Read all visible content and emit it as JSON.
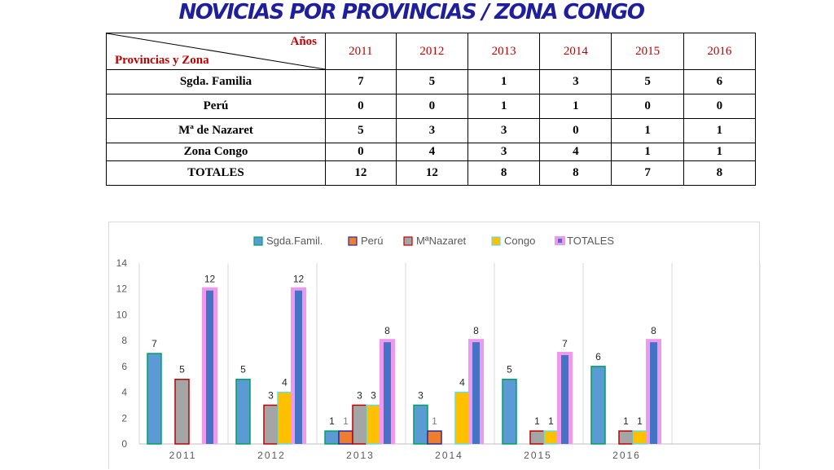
{
  "title": "NOVICIAS POR PROVINCIAS / ZONA CONGO",
  "table": {
    "corner_top": "Años",
    "corner_bottom": "Provincias y Zona",
    "years": [
      "2011",
      "2012",
      "2013",
      "2014",
      "2015",
      "2016"
    ],
    "rows": [
      {
        "label": "Sgda. Familia",
        "values": [
          "7",
          "5",
          "1",
          "3",
          "5",
          "6"
        ]
      },
      {
        "label": "Perú",
        "values": [
          "0",
          "0",
          "1",
          "1",
          "0",
          "0"
        ]
      },
      {
        "label": "Mª de Nazaret",
        "values": [
          "5",
          "3",
          "3",
          "0",
          "1",
          "1"
        ]
      },
      {
        "label": "Zona Congo",
        "values": [
          "0",
          "4",
          "3",
          "4",
          "1",
          "1"
        ]
      },
      {
        "label": "TOTALES",
        "values": [
          "12",
          "12",
          "8",
          "8",
          "7",
          "8"
        ]
      }
    ]
  },
  "colors": {
    "title": "#1f1f9c",
    "header_text": "#c00000",
    "sgda": "#5b9bd5",
    "peru": "#ed7d31",
    "nazaret": "#a5a5a5",
    "congo": "#ffc000",
    "totales_fill": "#4472c4",
    "totales_glow": "#ee99ee"
  },
  "chart_data": {
    "type": "bar",
    "categories": [
      "2011",
      "2012",
      "2013",
      "2014",
      "2015",
      "2016"
    ],
    "series": [
      {
        "name": "Sgda.Famil.",
        "values": [
          7,
          5,
          1,
          3,
          5,
          6
        ],
        "labels": [
          "7",
          "5",
          "1",
          "3",
          "5",
          "6"
        ]
      },
      {
        "name": "Perú",
        "values": [
          0,
          0,
          1,
          1,
          0,
          0
        ],
        "labels": [
          "",
          "",
          "1",
          "1",
          "",
          ""
        ]
      },
      {
        "name": "MªNazaret",
        "values": [
          5,
          3,
          3,
          0,
          1,
          1
        ],
        "labels": [
          "5",
          "3",
          "3",
          "",
          "1",
          "1"
        ]
      },
      {
        "name": "Congo",
        "values": [
          0,
          4,
          3,
          4,
          1,
          1
        ],
        "labels": [
          "",
          "4",
          "3",
          "4",
          "1",
          "1"
        ]
      },
      {
        "name": "TOTALES",
        "values": [
          12,
          12,
          8,
          8,
          7,
          8
        ],
        "labels": [
          "12",
          "12",
          "8",
          "8",
          "7",
          "8"
        ]
      }
    ],
    "yticks": [
      "0",
      "2",
      "4",
      "6",
      "8",
      "10",
      "12",
      "14"
    ],
    "ylim": [
      0,
      14
    ],
    "grid": "vertical",
    "legend": "top"
  }
}
